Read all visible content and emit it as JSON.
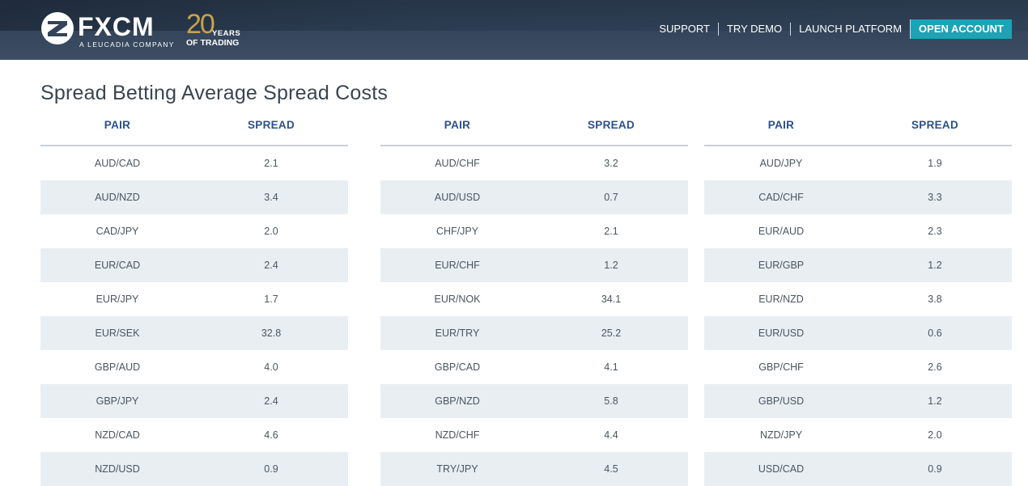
{
  "header": {
    "brand": "FXCM",
    "brand_sub": "A LEUCADIA COMPANY",
    "anniversary_num": "20",
    "anniversary_word": "YEARS",
    "anniversary_sub": "OF TRADING",
    "nav": {
      "support": "SUPPORT",
      "try_demo": "TRY DEMO",
      "launch_platform": "LAUNCH PLATFORM",
      "open_account": "OPEN ACCOUNT"
    },
    "colors": {
      "accent": "#1ca3b5",
      "gold": "#c9a24a",
      "header_bg": "#33445a"
    }
  },
  "page_title": "Spread Betting Average Spread Costs",
  "tables": [
    {
      "headers": [
        "PAIR",
        "SPREAD"
      ],
      "rows": [
        [
          "AUD/CAD",
          "2.1"
        ],
        [
          "AUD/NZD",
          "3.4"
        ],
        [
          "CAD/JPY",
          "2.0"
        ],
        [
          "EUR/CAD",
          "2.4"
        ],
        [
          "EUR/JPY",
          "1.7"
        ],
        [
          "EUR/SEK",
          "32.8"
        ],
        [
          "GBP/AUD",
          "4.0"
        ],
        [
          "GBP/JPY",
          "2.4"
        ],
        [
          "NZD/CAD",
          "4.6"
        ],
        [
          "NZD/USD",
          "0.9"
        ]
      ]
    },
    {
      "headers": [
        "PAIR",
        "SPREAD"
      ],
      "rows": [
        [
          "AUD/CHF",
          "3.2"
        ],
        [
          "AUD/USD",
          "0.7"
        ],
        [
          "CHF/JPY",
          "2.1"
        ],
        [
          "EUR/CHF",
          "1.2"
        ],
        [
          "EUR/NOK",
          "34.1"
        ],
        [
          "EUR/TRY",
          "25.2"
        ],
        [
          "GBP/CAD",
          "4.1"
        ],
        [
          "GBP/NZD",
          "5.8"
        ],
        [
          "NZD/CHF",
          "4.4"
        ],
        [
          "TRY/JPY",
          "4.5"
        ]
      ]
    },
    {
      "headers": [
        "PAIR",
        "SPREAD"
      ],
      "rows": [
        [
          "AUD/JPY",
          "1.9"
        ],
        [
          "CAD/CHF",
          "3.3"
        ],
        [
          "EUR/AUD",
          "2.3"
        ],
        [
          "EUR/GBP",
          "1.2"
        ],
        [
          "EUR/NZD",
          "3.8"
        ],
        [
          "EUR/USD",
          "0.6"
        ],
        [
          "GBP/CHF",
          "2.6"
        ],
        [
          "GBP/USD",
          "1.2"
        ],
        [
          "NZD/JPY",
          "2.0"
        ],
        [
          "USD/CAD",
          "0.9"
        ]
      ]
    }
  ]
}
